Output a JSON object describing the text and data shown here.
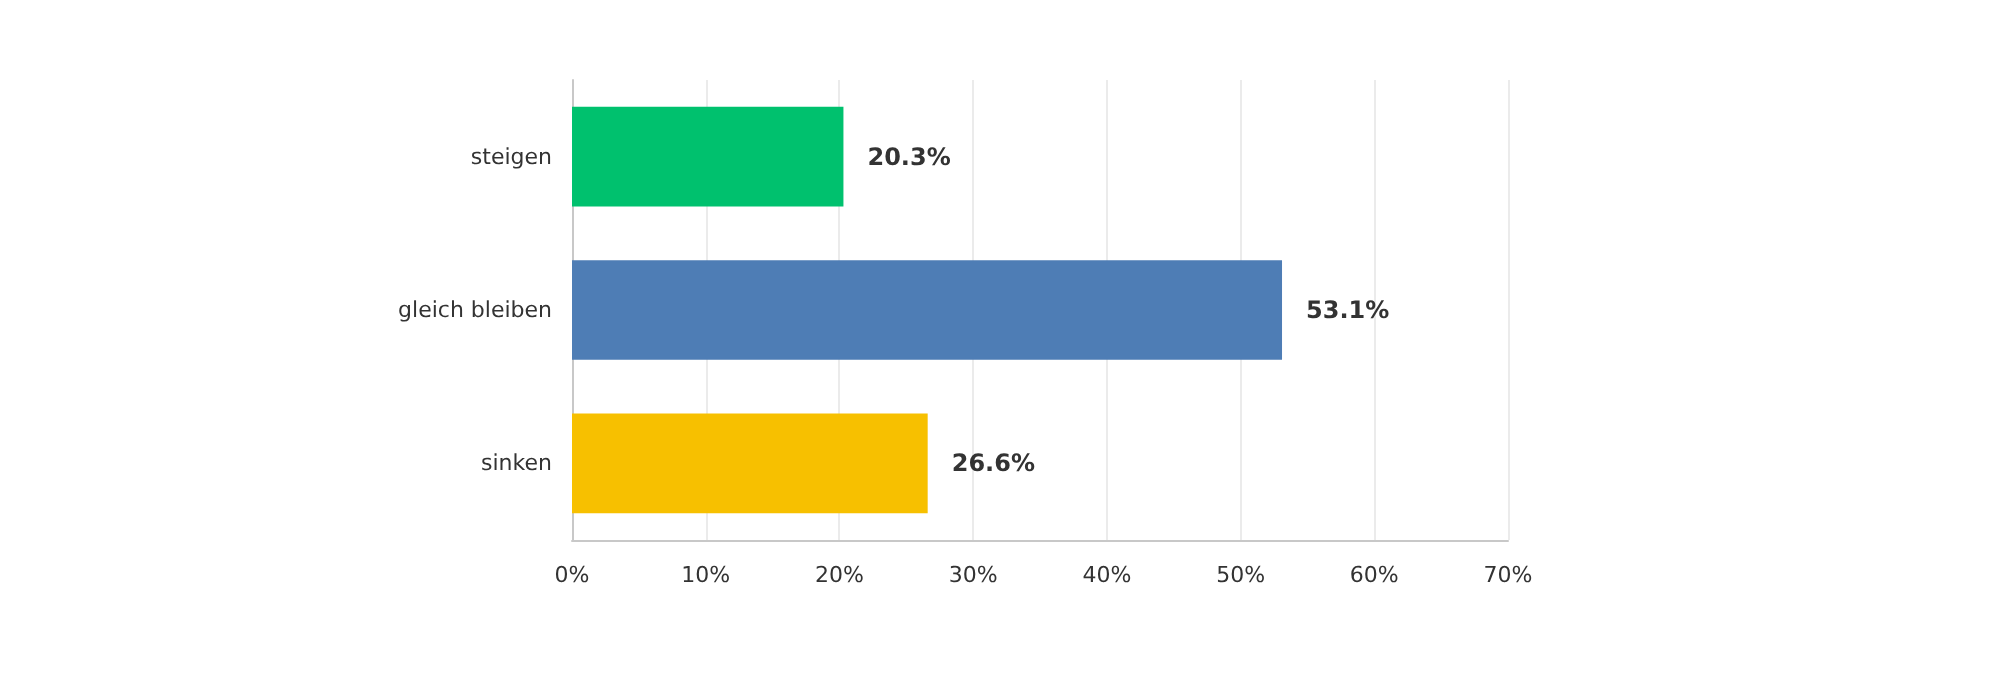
{
  "chart_data": {
    "type": "bar",
    "orientation": "horizontal",
    "categories": [
      "steigen",
      "gleich bleiben",
      "sinken"
    ],
    "values": [
      20.3,
      53.1,
      26.6
    ],
    "colors": [
      "#00c16e",
      "#4e7db5",
      "#f7c000"
    ],
    "value_labels": [
      "20.3%",
      "53.1%",
      "26.6%"
    ],
    "xlim": [
      0,
      70
    ],
    "xticks": [
      {
        "value": 0,
        "label": "0%"
      },
      {
        "value": 10,
        "label": "10%"
      },
      {
        "value": 20,
        "label": "20%"
      },
      {
        "value": 30,
        "label": "30%"
      },
      {
        "value": 40,
        "label": "40%"
      },
      {
        "value": 50,
        "label": "50%"
      },
      {
        "value": 60,
        "label": "60%"
      },
      {
        "value": 70,
        "label": "70%"
      }
    ],
    "grid": "x"
  }
}
